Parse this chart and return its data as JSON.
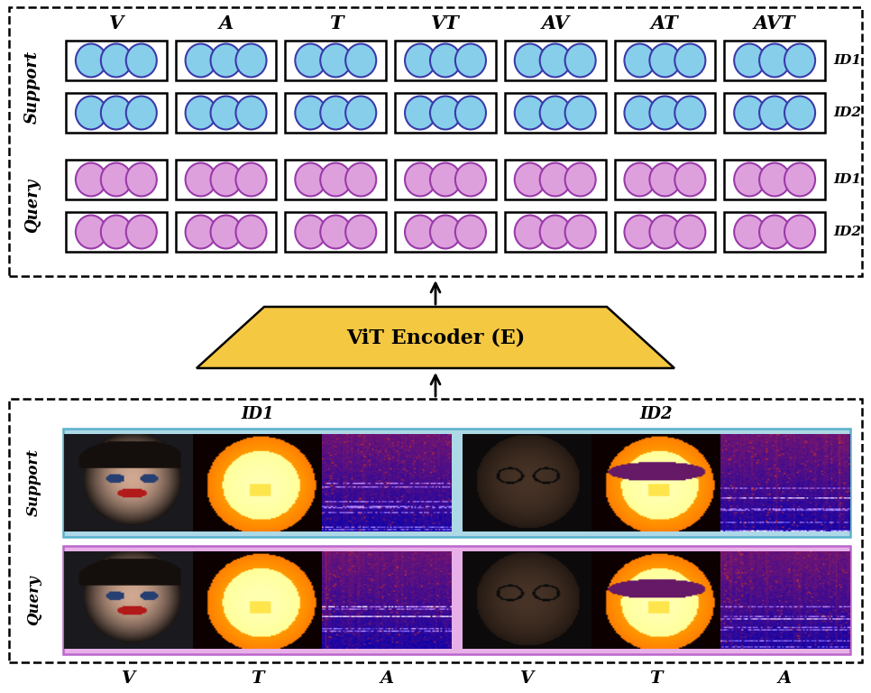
{
  "col_labels": [
    "V",
    "A",
    "T",
    "VT",
    "AV",
    "AT",
    "AVT"
  ],
  "support_row_labels": [
    "ID1",
    "ID2"
  ],
  "query_row_labels": [
    "ID1",
    "ID2"
  ],
  "support_circle_color": "#87CEEB",
  "support_circle_edge": "#3a3aaa",
  "query_circle_color": "#DDA0DD",
  "query_circle_edge": "#9a3aaa",
  "encoder_color": "#F5C842",
  "encoder_text": "ViT Encoder (E)",
  "bottom_labels": [
    "V",
    "T",
    "A"
  ],
  "circles_per_cell": 3,
  "n_cols": 7,
  "support_bg_img": "#add8e6",
  "query_bg_img": "#e8b0e8"
}
